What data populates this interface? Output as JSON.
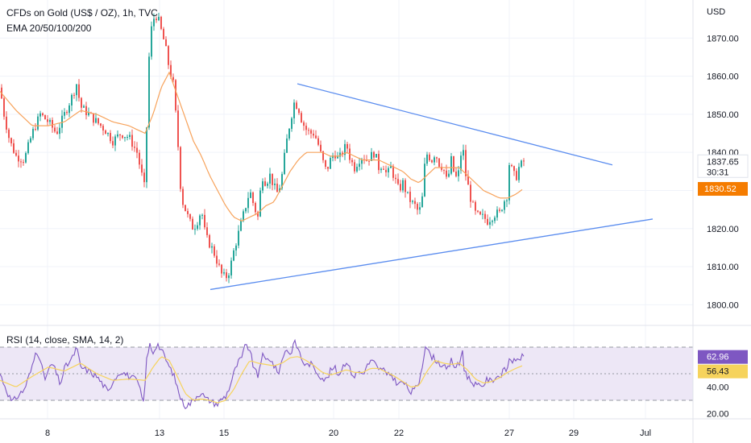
{
  "title": "CFDs on Gold (US$ / OZ), 1h, TVC",
  "indicator": "EMA 20/50/100/200",
  "rsi_title": "RSI (14, close, SMA, 14, 2)",
  "currency": "USD",
  "price_tag": {
    "price": "1837.65",
    "countdown": "30:31",
    "ema": "1830.52"
  },
  "rsi_tag": {
    "rsi": "62.96",
    "sma": "56.43"
  },
  "colors": {
    "up": "#26a69a",
    "down": "#ef5350",
    "ema": "#f7a35c",
    "trendline": "#5b8def",
    "rsi": "#7e57c2",
    "rsi_sma": "#f6d35c",
    "band": "#ede7f6",
    "grid": "#f0f3fa",
    "ema_tag": "#f57c00",
    "price_tag": "#ffffff"
  },
  "chart_data": [
    {
      "type": "candlestick",
      "ylim": [
        1795,
        1880
      ],
      "x_range": [
        0,
        860
      ],
      "x_ticks": [
        {
          "x": 59,
          "label": "8"
        },
        {
          "x": 198,
          "label": "13"
        },
        {
          "x": 278,
          "label": "15"
        },
        {
          "x": 414,
          "label": "20"
        },
        {
          "x": 495,
          "label": "22"
        },
        {
          "x": 632,
          "label": "27"
        },
        {
          "x": 712,
          "label": "29"
        },
        {
          "x": 801,
          "label": "Jul"
        }
      ],
      "y_ticks": [
        1800,
        1810,
        1820,
        1830,
        1840,
        1850,
        1860,
        1870
      ],
      "anchors": [
        [
          0,
          1857
        ],
        [
          5,
          1850
        ],
        [
          12,
          1843
        ],
        [
          20,
          1839
        ],
        [
          30,
          1838
        ],
        [
          40,
          1845
        ],
        [
          50,
          1850
        ],
        [
          60,
          1848
        ],
        [
          70,
          1845
        ],
        [
          80,
          1850
        ],
        [
          90,
          1855
        ],
        [
          95,
          1858
        ],
        [
          100,
          1852
        ],
        [
          110,
          1850
        ],
        [
          120,
          1848
        ],
        [
          130,
          1846
        ],
        [
          140,
          1843
        ],
        [
          150,
          1845
        ],
        [
          160,
          1844
        ],
        [
          170,
          1840
        ],
        [
          175,
          1835
        ],
        [
          180,
          1830
        ],
        [
          183,
          1855
        ],
        [
          186,
          1870
        ],
        [
          190,
          1875
        ],
        [
          195,
          1876
        ],
        [
          200,
          1872
        ],
        [
          205,
          1868
        ],
        [
          210,
          1862
        ],
        [
          215,
          1858
        ],
        [
          220,
          1845
        ],
        [
          225,
          1828
        ],
        [
          230,
          1825
        ],
        [
          235,
          1822
        ],
        [
          240,
          1820
        ],
        [
          245,
          1822
        ],
        [
          250,
          1825
        ],
        [
          255,
          1818
        ],
        [
          260,
          1816
        ],
        [
          265,
          1814
        ],
        [
          270,
          1811
        ],
        [
          275,
          1808
        ],
        [
          280,
          1807
        ],
        [
          285,
          1809
        ],
        [
          290,
          1814
        ],
        [
          295,
          1818
        ],
        [
          300,
          1822
        ],
        [
          305,
          1826
        ],
        [
          310,
          1830
        ],
        [
          315,
          1826
        ],
        [
          320,
          1823
        ],
        [
          325,
          1834
        ],
        [
          330,
          1832
        ],
        [
          335,
          1834
        ],
        [
          340,
          1831
        ],
        [
          345,
          1829
        ],
        [
          350,
          1834
        ],
        [
          355,
          1842
        ],
        [
          360,
          1848
        ],
        [
          365,
          1853
        ],
        [
          370,
          1852
        ],
        [
          375,
          1848
        ],
        [
          380,
          1846
        ],
        [
          385,
          1845
        ],
        [
          390,
          1845
        ],
        [
          395,
          1842
        ],
        [
          400,
          1838
        ],
        [
          405,
          1835
        ],
        [
          410,
          1838
        ],
        [
          415,
          1840
        ],
        [
          420,
          1838
        ],
        [
          425,
          1840
        ],
        [
          430,
          1842
        ],
        [
          435,
          1838
        ],
        [
          440,
          1836
        ],
        [
          445,
          1838
        ],
        [
          450,
          1839
        ],
        [
          455,
          1838
        ],
        [
          460,
          1839
        ],
        [
          465,
          1840
        ],
        [
          470,
          1836
        ],
        [
          475,
          1837
        ],
        [
          480,
          1834
        ],
        [
          485,
          1836
        ],
        [
          490,
          1833
        ],
        [
          495,
          1830
        ],
        [
          500,
          1832
        ],
        [
          505,
          1829
        ],
        [
          510,
          1827
        ],
        [
          515,
          1826
        ],
        [
          520,
          1824
        ],
        [
          525,
          1829
        ],
        [
          528,
          1840
        ],
        [
          532,
          1839
        ],
        [
          536,
          1838
        ],
        [
          540,
          1840
        ],
        [
          545,
          1837
        ],
        [
          550,
          1836
        ],
        [
          555,
          1832
        ],
        [
          560,
          1838
        ],
        [
          565,
          1833
        ],
        [
          570,
          1835
        ],
        [
          574,
          1844
        ],
        [
          576,
          1836
        ],
        [
          580,
          1832
        ],
        [
          585,
          1827
        ],
        [
          590,
          1824
        ],
        [
          595,
          1823
        ],
        [
          600,
          1823
        ],
        [
          605,
          1822
        ],
        [
          610,
          1823
        ],
        [
          615,
          1824
        ],
        [
          620,
          1824
        ],
        [
          625,
          1827
        ],
        [
          630,
          1829
        ],
        [
          632,
          1837
        ],
        [
          636,
          1835
        ],
        [
          640,
          1833
        ],
        [
          644,
          1836
        ],
        [
          650,
          1837.65
        ]
      ],
      "ema_line": [
        [
          0,
          1856
        ],
        [
          20,
          1851
        ],
        [
          40,
          1847
        ],
        [
          60,
          1847
        ],
        [
          80,
          1848
        ],
        [
          100,
          1851
        ],
        [
          120,
          1850
        ],
        [
          140,
          1848
        ],
        [
          160,
          1847
        ],
        [
          180,
          1845
        ],
        [
          190,
          1850
        ],
        [
          200,
          1857
        ],
        [
          210,
          1861
        ],
        [
          220,
          1855
        ],
        [
          230,
          1849
        ],
        [
          240,
          1843
        ],
        [
          250,
          1839
        ],
        [
          260,
          1834
        ],
        [
          270,
          1830
        ],
        [
          280,
          1826
        ],
        [
          290,
          1823
        ],
        [
          300,
          1822
        ],
        [
          310,
          1823
        ],
        [
          320,
          1824
        ],
        [
          330,
          1826
        ],
        [
          340,
          1827
        ],
        [
          350,
          1831
        ],
        [
          360,
          1835
        ],
        [
          370,
          1838
        ],
        [
          380,
          1840
        ],
        [
          390,
          1840
        ],
        [
          400,
          1840
        ],
        [
          410,
          1839
        ],
        [
          420,
          1839
        ],
        [
          430,
          1840
        ],
        [
          440,
          1839
        ],
        [
          450,
          1838
        ],
        [
          460,
          1838
        ],
        [
          470,
          1838
        ],
        [
          480,
          1837
        ],
        [
          490,
          1836
        ],
        [
          500,
          1835
        ],
        [
          510,
          1833
        ],
        [
          520,
          1832
        ],
        [
          530,
          1834
        ],
        [
          540,
          1836
        ],
        [
          550,
          1836
        ],
        [
          560,
          1836
        ],
        [
          570,
          1836
        ],
        [
          580,
          1834
        ],
        [
          590,
          1832
        ],
        [
          600,
          1830
        ],
        [
          610,
          1829
        ],
        [
          620,
          1828
        ],
        [
          630,
          1828
        ],
        [
          640,
          1829
        ],
        [
          650,
          1830.52
        ]
      ],
      "trendlines": [
        {
          "from": [
            369,
            1858
          ],
          "to": [
            760,
            1836.7
          ]
        },
        {
          "from": [
            261,
            1804
          ],
          "to": [
            810,
            1822.5
          ]
        }
      ]
    },
    {
      "type": "line",
      "name": "RSI",
      "ylim": [
        16,
        84
      ],
      "y_ticks": [
        20,
        40
      ],
      "bands": [
        30,
        50,
        70
      ],
      "rsi_anchors": [
        [
          0,
          50
        ],
        [
          10,
          35
        ],
        [
          15,
          28
        ],
        [
          20,
          32
        ],
        [
          30,
          38
        ],
        [
          40,
          55
        ],
        [
          45,
          68
        ],
        [
          50,
          62
        ],
        [
          55,
          45
        ],
        [
          60,
          52
        ],
        [
          65,
          58
        ],
        [
          70,
          50
        ],
        [
          75,
          42
        ],
        [
          80,
          54
        ],
        [
          90,
          62
        ],
        [
          95,
          70
        ],
        [
          100,
          55
        ],
        [
          110,
          52
        ],
        [
          120,
          48
        ],
        [
          130,
          40
        ],
        [
          135,
          35
        ],
        [
          140,
          45
        ],
        [
          150,
          52
        ],
        [
          160,
          48
        ],
        [
          170,
          45
        ],
        [
          175,
          35
        ],
        [
          178,
          28
        ],
        [
          182,
          60
        ],
        [
          186,
          72
        ],
        [
          190,
          66
        ],
        [
          195,
          73
        ],
        [
          200,
          68
        ],
        [
          205,
          62
        ],
        [
          210,
          55
        ],
        [
          215,
          50
        ],
        [
          220,
          40
        ],
        [
          225,
          30
        ],
        [
          230,
          26
        ],
        [
          235,
          27
        ],
        [
          240,
          30
        ],
        [
          245,
          34
        ],
        [
          250,
          36
        ],
        [
          255,
          31
        ],
        [
          260,
          30
        ],
        [
          265,
          28
        ],
        [
          270,
          27
        ],
        [
          275,
          31
        ],
        [
          280,
          33
        ],
        [
          285,
          40
        ],
        [
          290,
          50
        ],
        [
          295,
          58
        ],
        [
          300,
          62
        ],
        [
          305,
          72
        ],
        [
          310,
          68
        ],
        [
          315,
          54
        ],
        [
          320,
          48
        ],
        [
          325,
          64
        ],
        [
          330,
          60
        ],
        [
          335,
          62
        ],
        [
          340,
          56
        ],
        [
          345,
          50
        ],
        [
          350,
          60
        ],
        [
          355,
          70
        ],
        [
          360,
          64
        ],
        [
          365,
          74
        ],
        [
          370,
          69
        ],
        [
          375,
          60
        ],
        [
          380,
          56
        ],
        [
          385,
          58
        ],
        [
          390,
          54
        ],
        [
          395,
          50
        ],
        [
          400,
          47
        ],
        [
          405,
          45
        ],
        [
          410,
          52
        ],
        [
          415,
          55
        ],
        [
          420,
          49
        ],
        [
          425,
          55
        ],
        [
          430,
          60
        ],
        [
          435,
          52
        ],
        [
          440,
          48
        ],
        [
          445,
          52
        ],
        [
          450,
          50
        ],
        [
          455,
          55
        ],
        [
          460,
          60
        ],
        [
          465,
          58
        ],
        [
          470,
          52
        ],
        [
          475,
          55
        ],
        [
          480,
          48
        ],
        [
          485,
          50
        ],
        [
          490,
          45
        ],
        [
          495,
          42
        ],
        [
          500,
          44
        ],
        [
          505,
          40
        ],
        [
          510,
          36
        ],
        [
          515,
          38
        ],
        [
          520,
          44
        ],
        [
          525,
          60
        ],
        [
          528,
          72
        ],
        [
          532,
          66
        ],
        [
          536,
          63
        ],
        [
          540,
          61
        ],
        [
          545,
          58
        ],
        [
          550,
          56
        ],
        [
          555,
          52
        ],
        [
          560,
          60
        ],
        [
          565,
          55
        ],
        [
          570,
          57
        ],
        [
          574,
          68
        ],
        [
          576,
          54
        ],
        [
          580,
          48
        ],
        [
          585,
          44
        ],
        [
          590,
          42
        ],
        [
          595,
          40
        ],
        [
          600,
          42
        ],
        [
          605,
          46
        ],
        [
          610,
          44
        ],
        [
          615,
          48
        ],
        [
          620,
          48
        ],
        [
          625,
          52
        ],
        [
          630,
          54
        ],
        [
          632,
          62
        ],
        [
          636,
          60
        ],
        [
          640,
          58
        ],
        [
          644,
          62
        ],
        [
          650,
          62.96
        ]
      ],
      "sma_anchors": [
        [
          0,
          45
        ],
        [
          20,
          40
        ],
        [
          40,
          48
        ],
        [
          60,
          55
        ],
        [
          80,
          52
        ],
        [
          100,
          58
        ],
        [
          120,
          50
        ],
        [
          140,
          45
        ],
        [
          160,
          46
        ],
        [
          180,
          45
        ],
        [
          190,
          55
        ],
        [
          200,
          63
        ],
        [
          210,
          60
        ],
        [
          220,
          48
        ],
        [
          230,
          35
        ],
        [
          240,
          30
        ],
        [
          250,
          31
        ],
        [
          260,
          30
        ],
        [
          270,
          28
        ],
        [
          280,
          30
        ],
        [
          290,
          38
        ],
        [
          300,
          50
        ],
        [
          310,
          60
        ],
        [
          320,
          58
        ],
        [
          330,
          57
        ],
        [
          340,
          56
        ],
        [
          350,
          58
        ],
        [
          360,
          62
        ],
        [
          370,
          63
        ],
        [
          380,
          60
        ],
        [
          390,
          56
        ],
        [
          400,
          51
        ],
        [
          410,
          49
        ],
        [
          420,
          51
        ],
        [
          430,
          53
        ],
        [
          440,
          51
        ],
        [
          450,
          51
        ],
        [
          460,
          54
        ],
        [
          470,
          54
        ],
        [
          480,
          51
        ],
        [
          490,
          48
        ],
        [
          500,
          44
        ],
        [
          510,
          40
        ],
        [
          520,
          41
        ],
        [
          530,
          52
        ],
        [
          540,
          60
        ],
        [
          550,
          58
        ],
        [
          560,
          57
        ],
        [
          570,
          58
        ],
        [
          580,
          53
        ],
        [
          590,
          46
        ],
        [
          600,
          43
        ],
        [
          610,
          44
        ],
        [
          620,
          47
        ],
        [
          630,
          51
        ],
        [
          640,
          54
        ],
        [
          650,
          56.43
        ]
      ]
    }
  ]
}
